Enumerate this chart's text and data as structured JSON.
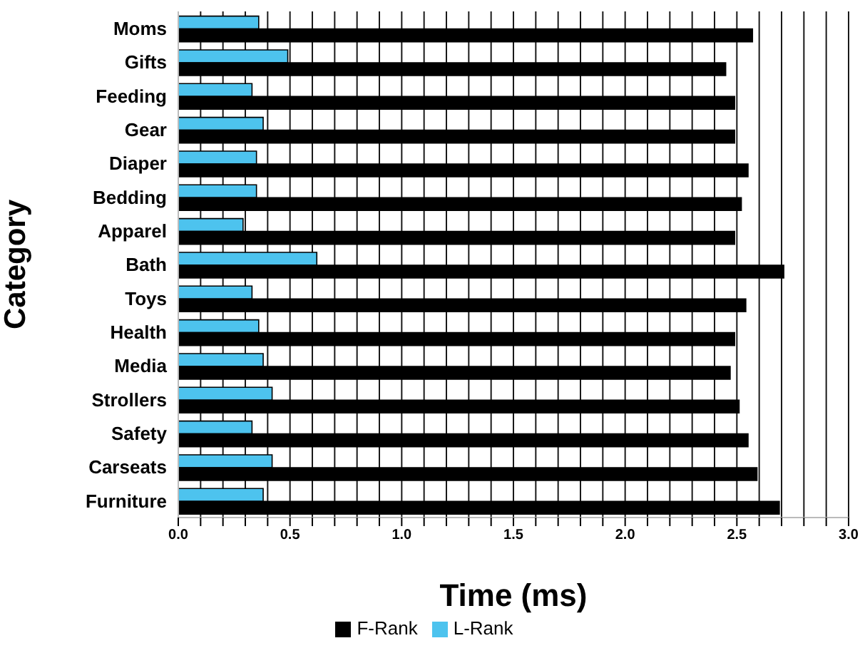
{
  "chart_data": {
    "type": "bar",
    "orientation": "horizontal",
    "xlabel": "Time (ms)",
    "ylabel": "Category",
    "categories": [
      "Moms",
      "Gifts",
      "Feeding",
      "Gear",
      "Diaper",
      "Bedding",
      "Apparel",
      "Bath",
      "Toys",
      "Health",
      "Media",
      "Strollers",
      "Safety",
      "Carseats",
      "Furniture"
    ],
    "series": [
      {
        "name": "L-Rank",
        "color": "#4dc3ee",
        "values": [
          0.36,
          0.49,
          0.33,
          0.38,
          0.35,
          0.35,
          0.29,
          0.62,
          0.33,
          0.36,
          0.38,
          0.42,
          0.33,
          0.42,
          0.38
        ]
      },
      {
        "name": "F-Rank",
        "color": "#000000",
        "values": [
          2.57,
          2.45,
          2.49,
          2.49,
          2.55,
          2.52,
          2.49,
          2.71,
          2.54,
          2.49,
          2.47,
          2.51,
          2.55,
          2.59,
          2.69
        ]
      }
    ],
    "xlim": [
      0,
      3
    ],
    "xticks": [
      {
        "value": 0,
        "label": "0.0"
      },
      {
        "value": 0.1,
        "label": null
      },
      {
        "value": 0.2,
        "label": null
      },
      {
        "value": 0.3,
        "label": null
      },
      {
        "value": 0.4,
        "label": null
      },
      {
        "value": 0.5,
        "label": "0.5"
      },
      {
        "value": 0.6,
        "label": null
      },
      {
        "value": 0.7,
        "label": null
      },
      {
        "value": 0.8,
        "label": null
      },
      {
        "value": 0.9,
        "label": null
      },
      {
        "value": 1,
        "label": "1.0"
      },
      {
        "value": 1.1,
        "label": null
      },
      {
        "value": 1.2,
        "label": null
      },
      {
        "value": 1.3,
        "label": null
      },
      {
        "value": 1.4,
        "label": null
      },
      {
        "value": 1.5,
        "label": "1.5"
      },
      {
        "value": 1.6,
        "label": null
      },
      {
        "value": 1.7,
        "label": null
      },
      {
        "value": 1.8,
        "label": null
      },
      {
        "value": 1.9,
        "label": null
      },
      {
        "value": 2,
        "label": "2.0"
      },
      {
        "value": 2.1,
        "label": null
      },
      {
        "value": 2.2,
        "label": null
      },
      {
        "value": 2.3,
        "label": null
      },
      {
        "value": 2.4,
        "label": null
      },
      {
        "value": 2.5,
        "label": "2.5"
      },
      {
        "value": 2.6,
        "label": null
      },
      {
        "value": 2.7,
        "label": null
      },
      {
        "value": 2.8,
        "label": null
      },
      {
        "value": 2.9,
        "label": null
      },
      {
        "value": 3,
        "label": "3.0"
      }
    ],
    "grid": "x",
    "legend": "bottom"
  }
}
